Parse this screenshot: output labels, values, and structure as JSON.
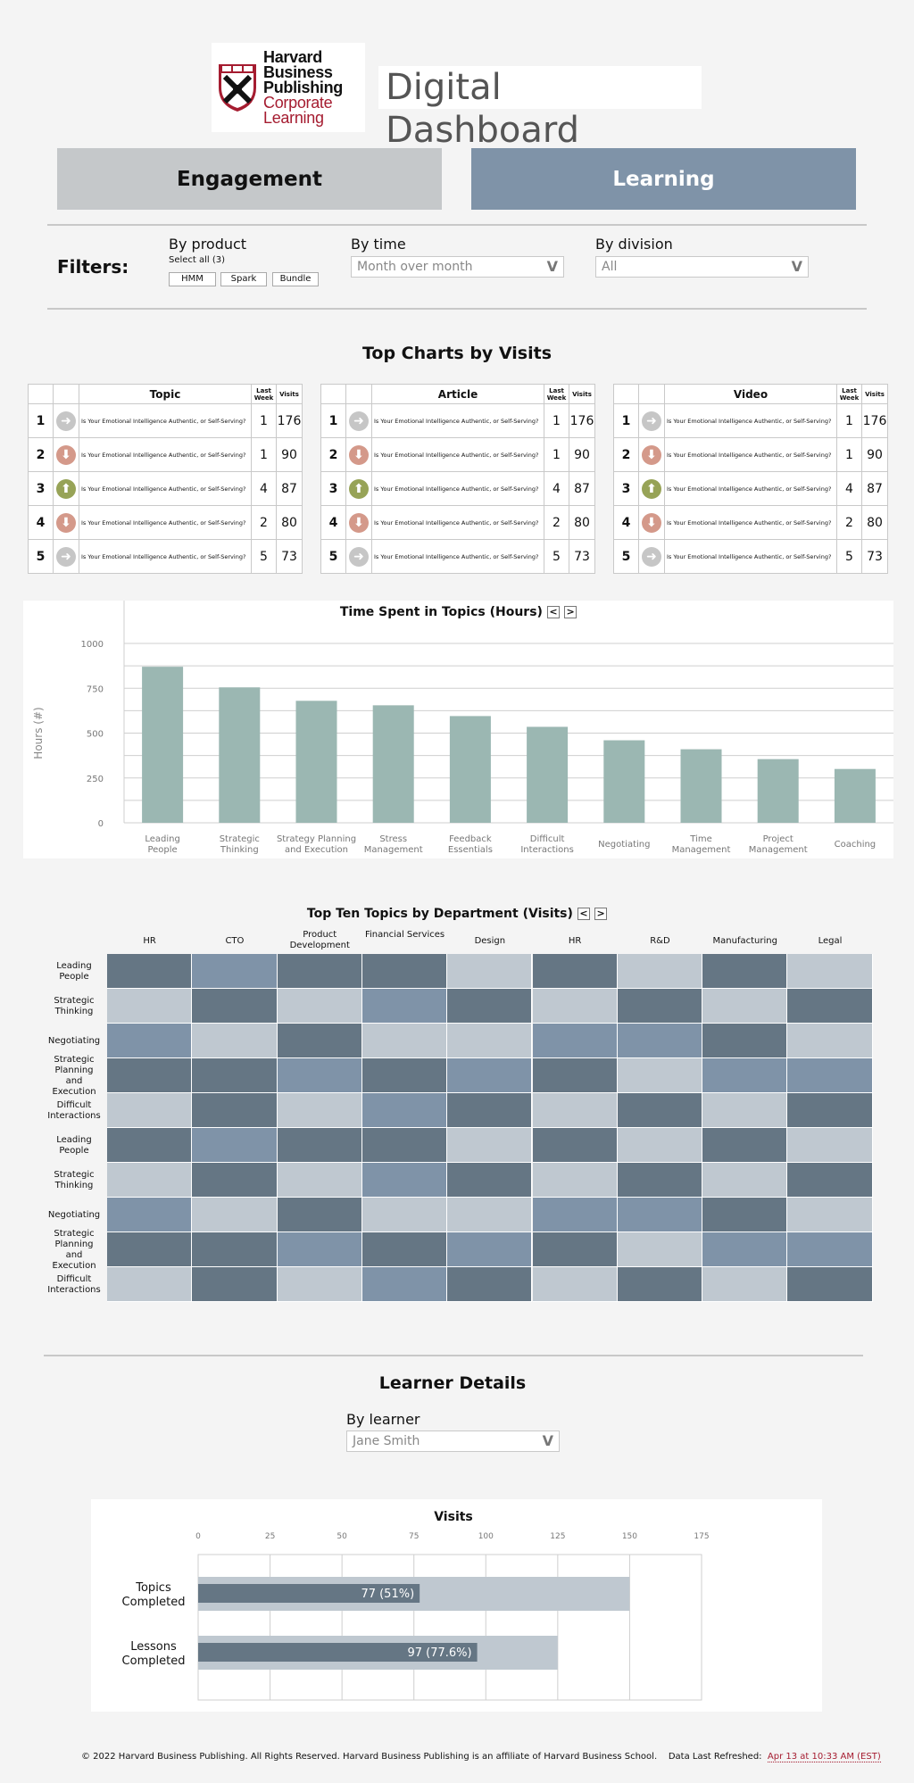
{
  "header": {
    "logo_lines": [
      "Harvard",
      "Business",
      "Publishing",
      "Corporate",
      "Learning"
    ],
    "title": "Digital Dashboard"
  },
  "tabs": [
    {
      "label": "Engagement",
      "active": false
    },
    {
      "label": "Learning",
      "active": true
    }
  ],
  "filters": {
    "label": "Filters:",
    "product": {
      "label": "By product",
      "select_all": "Select all (3)",
      "options": [
        "HMM",
        "Spark",
        "Bundle"
      ]
    },
    "time": {
      "label": "By time",
      "value": "Month over month"
    },
    "division": {
      "label": "By division",
      "value": "All"
    },
    "chevron": "V"
  },
  "top_charts": {
    "title": "Top Charts by Visits",
    "col_last_week": "Last Week",
    "col_visits": "Visits",
    "tables": [
      {
        "header": "Topic",
        "rows": [
          {
            "rank": "1",
            "trend": "same",
            "topic": "Is Your Emotional Intelligence Authentic, or Self-Serving?",
            "last_week": "1",
            "visits": "176"
          },
          {
            "rank": "2",
            "trend": "down",
            "topic": "Is Your Emotional Intelligence Authentic, or Self-Serving?",
            "last_week": "1",
            "visits": "90"
          },
          {
            "rank": "3",
            "trend": "up",
            "topic": "Is Your Emotional Intelligence Authentic, or Self-Serving?",
            "last_week": "4",
            "visits": "87"
          },
          {
            "rank": "4",
            "trend": "down",
            "topic": "Is Your Emotional Intelligence Authentic, or Self-Serving?",
            "last_week": "2",
            "visits": "80"
          },
          {
            "rank": "5",
            "trend": "same",
            "topic": "Is Your Emotional Intelligence Authentic, or Self-Serving?",
            "last_week": "5",
            "visits": "73"
          }
        ]
      },
      {
        "header": "Article",
        "rows": [
          {
            "rank": "1",
            "trend": "same",
            "topic": "Is Your Emotional Intelligence Authentic, or Self-Serving?",
            "last_week": "1",
            "visits": "176"
          },
          {
            "rank": "2",
            "trend": "down",
            "topic": "Is Your Emotional Intelligence Authentic, or Self-Serving?",
            "last_week": "1",
            "visits": "90"
          },
          {
            "rank": "3",
            "trend": "up",
            "topic": "Is Your Emotional Intelligence Authentic, or Self-Serving?",
            "last_week": "4",
            "visits": "87"
          },
          {
            "rank": "4",
            "trend": "down",
            "topic": "Is Your Emotional Intelligence Authentic, or Self-Serving?",
            "last_week": "2",
            "visits": "80"
          },
          {
            "rank": "5",
            "trend": "same",
            "topic": "Is Your Emotional Intelligence Authentic, or Self-Serving?",
            "last_week": "5",
            "visits": "73"
          }
        ]
      },
      {
        "header": "Video",
        "rows": [
          {
            "rank": "1",
            "trend": "same",
            "topic": "Is Your Emotional Intelligence Authentic, or Self-Serving?",
            "last_week": "1",
            "visits": "176"
          },
          {
            "rank": "2",
            "trend": "down",
            "topic": "Is Your Emotional Intelligence Authentic, or Self-Serving?",
            "last_week": "1",
            "visits": "90"
          },
          {
            "rank": "3",
            "trend": "up",
            "topic": "Is Your Emotional Intelligence Authentic, or Self-Serving?",
            "last_week": "4",
            "visits": "87"
          },
          {
            "rank": "4",
            "trend": "down",
            "topic": "Is Your Emotional Intelligence Authentic, or Self-Serving?",
            "last_week": "2",
            "visits": "80"
          },
          {
            "rank": "5",
            "trend": "same",
            "topic": "Is Your Emotional Intelligence Authentic, or Self-Serving?",
            "last_week": "5",
            "visits": "73"
          }
        ]
      }
    ]
  },
  "chart_data": [
    {
      "type": "bar",
      "title": "Time Spent in Topics (Hours)",
      "ylabel": "Hours (#)",
      "xlabel": "",
      "categories": [
        "Leading People",
        "Strategic Thinking",
        "Strategy Planning and Execution",
        "Stress Management",
        "Feedback Essentials",
        "Difficult Interactions",
        "Negotiating",
        "Time Management",
        "Project Management",
        "Coaching"
      ],
      "values": [
        870,
        755,
        680,
        655,
        595,
        535,
        460,
        410,
        355,
        300
      ],
      "yticks": [
        0,
        250,
        500,
        750,
        1000
      ],
      "ylim": [
        0,
        1000
      ],
      "grid": true,
      "color": "#9bb7b2"
    },
    {
      "type": "heatmap",
      "title": "Top Ten Topics by Department (Visits)",
      "columns": [
        "HR",
        "CTO",
        "Product Development",
        "Financial Services",
        "Design",
        "HR",
        "R&D",
        "Manufacturing",
        "Legal"
      ],
      "rows": [
        "Leading People",
        "Strategic Thinking",
        "Negotiating",
        "Strategic Planning and Execution",
        "Difficult Interactions",
        "Leading People",
        "Strategic Thinking",
        "Negotiating",
        "Strategic Planning and Execution",
        "Difficult Interactions"
      ],
      "levels": [
        [
          3,
          2,
          3,
          3,
          1,
          3,
          1,
          3,
          1
        ],
        [
          1,
          3,
          1,
          2,
          3,
          1,
          3,
          1,
          3
        ],
        [
          2,
          1,
          3,
          1,
          1,
          2,
          2,
          3,
          1
        ],
        [
          3,
          3,
          2,
          3,
          2,
          3,
          1,
          2,
          2
        ],
        [
          1,
          3,
          1,
          2,
          3,
          1,
          3,
          1,
          3
        ],
        [
          3,
          2,
          3,
          3,
          1,
          3,
          1,
          3,
          1
        ],
        [
          1,
          3,
          1,
          2,
          3,
          1,
          3,
          1,
          3
        ],
        [
          2,
          1,
          3,
          1,
          1,
          2,
          2,
          3,
          1
        ],
        [
          3,
          3,
          2,
          3,
          2,
          3,
          1,
          2,
          2
        ],
        [
          1,
          3,
          1,
          2,
          3,
          1,
          3,
          1,
          3
        ]
      ],
      "level_colors": {
        "1": "#bfc8d0",
        "2": "#7f93a8",
        "3": "#657684"
      }
    },
    {
      "type": "bar",
      "orientation": "horizontal",
      "title": "Visits",
      "categories": [
        "Topics Completed",
        "Lessons Completed"
      ],
      "totals": [
        150,
        125
      ],
      "values": [
        77,
        97
      ],
      "labels": [
        "77 (51%)",
        "97 (77.6%)"
      ],
      "xticks": [
        0,
        25,
        50,
        75,
        100,
        125,
        150,
        175
      ],
      "xlim": [
        0,
        175
      ],
      "colors": {
        "total": "#bfc8d0",
        "value": "#657684"
      }
    }
  ],
  "learner": {
    "title": "Learner Details",
    "by_learner_label": "By learner",
    "value": "Jane Smith"
  },
  "footer": {
    "copyright": "© 2022 Harvard Business Publishing. All Rights Reserved. Harvard Business Publishing is an affiliate of Harvard Business School.",
    "refreshed_label": "Data Last Refreshed:",
    "refreshed_value": "Apr 13 at 10:33 AM (EST)"
  },
  "nav": {
    "prev": "<",
    "next": ">"
  }
}
